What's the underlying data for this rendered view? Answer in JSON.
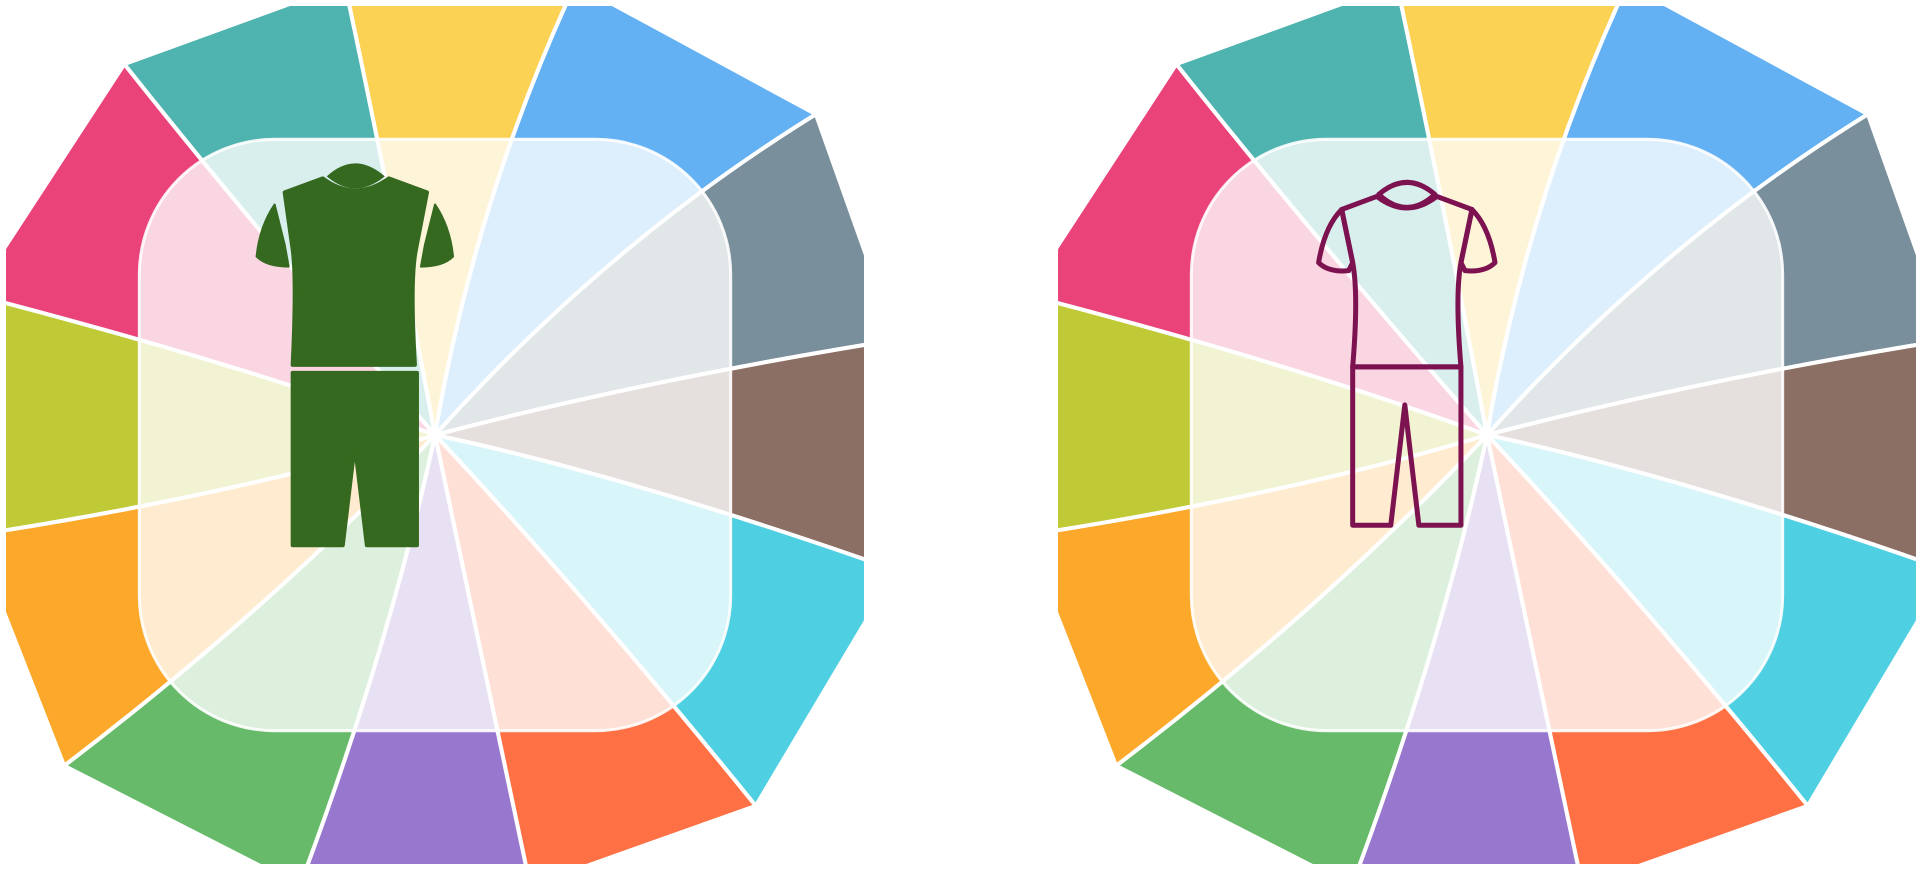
{
  "icons": [
    {
      "name": "tracksuit-glyph-icon",
      "style": "filled",
      "garment_color": "#35691f",
      "outline_color": "#35691f"
    },
    {
      "name": "tracksuit-line-icon",
      "style": "outline",
      "garment_color": "none",
      "outline_color": "#7d1250"
    }
  ],
  "palette": {
    "segments": [
      "#4fb4b0",
      "#fbd254",
      "#63b1f2",
      "#798f9b",
      "#8b6e64",
      "#4ecfe2",
      "#ff7144",
      "#9778ce",
      "#66ba69",
      "#fca82b",
      "#c0ca36",
      "#e9437a"
    ],
    "inner_overlay": "#ffffff"
  }
}
